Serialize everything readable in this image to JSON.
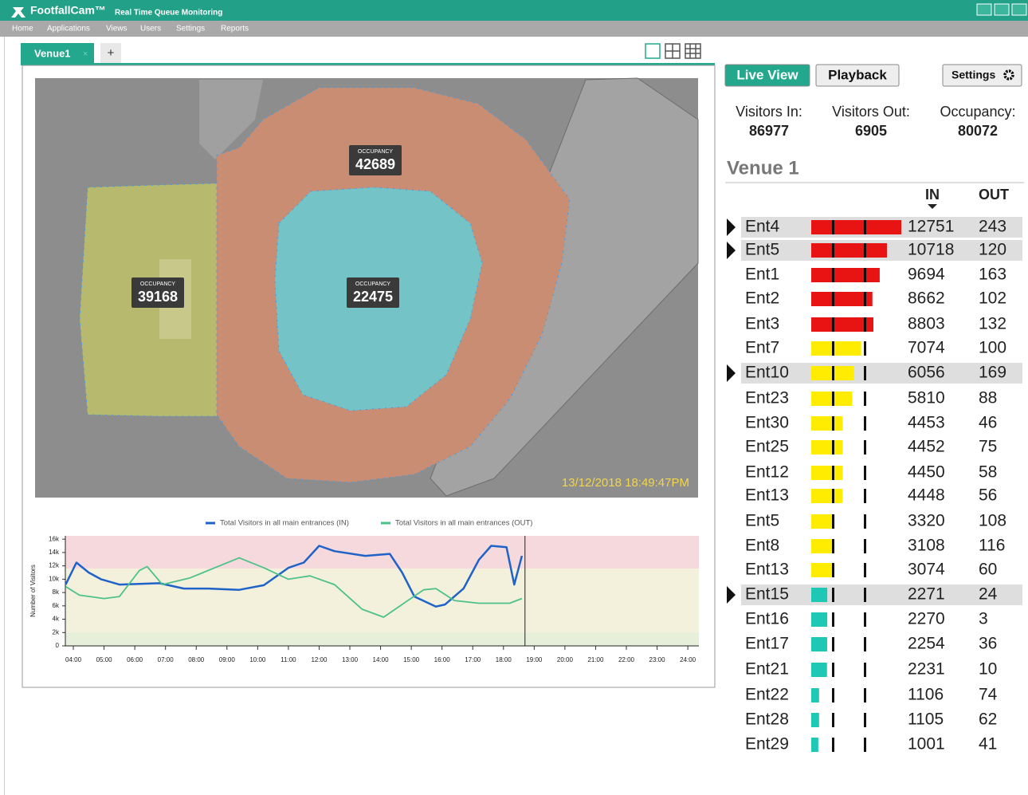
{
  "window": {
    "app_name": "FootfallCam™",
    "subtitle": "Real Time Queue Monitoring"
  },
  "menu": [
    "Home",
    "Applications",
    "Views",
    "Users",
    "Settings",
    "Reports"
  ],
  "tabs": {
    "active": "Venue1",
    "close": "×",
    "add": "+"
  },
  "map": {
    "zones": [
      {
        "label": "OCCUPANCY",
        "value": 42689
      },
      {
        "label": "OCCUPANCY",
        "value": 39168
      },
      {
        "label": "OCCUPANCY",
        "value": 22475
      }
    ],
    "timestamp": "13/12/2018 18:49:47PM"
  },
  "chart_data": {
    "type": "line",
    "y_label": "Number of Visitors",
    "series": [
      {
        "name": "Total Visitors in all main entrances (IN)",
        "color": "#1f63c9",
        "x": [
          3.75,
          4.1,
          4.5,
          4.9,
          5.5,
          6.8,
          7.6,
          8.4,
          9.4,
          10.2,
          11,
          11.5,
          12,
          12.5,
          13.5,
          14.3,
          14.7,
          15.1,
          15.8,
          16.1,
          16.7,
          17.2,
          17.6,
          18.1,
          18.35,
          18.6
        ],
        "values": [
          9200,
          12500,
          11000,
          10000,
          9200,
          9400,
          8600,
          8600,
          8400,
          9100,
          11700,
          12500,
          15000,
          14200,
          13500,
          13800,
          11000,
          7400,
          5900,
          6200,
          8600,
          12900,
          15000,
          14800,
          9200,
          13500
        ]
      },
      {
        "name": "Total Visitors in all main entrances (OUT)",
        "color": "#4cc28a",
        "x": [
          3.75,
          4.2,
          5,
          5.5,
          6.15,
          6.4,
          6.9,
          7.8,
          8.6,
          9.4,
          10.2,
          11,
          11.7,
          12.5,
          13.4,
          14.1,
          14.6,
          15.4,
          15.8,
          16.4,
          17.2,
          18.2,
          18.6
        ],
        "values": [
          8900,
          7600,
          7100,
          7400,
          11300,
          11900,
          9200,
          10200,
          11700,
          13200,
          11700,
          10000,
          10500,
          9200,
          5500,
          4300,
          5900,
          8400,
          8600,
          6800,
          6400,
          6400,
          7100
        ]
      }
    ],
    "xlim": [
      3.74,
      24.36
    ],
    "xticks": [
      {
        "value": 4,
        "label": "04:00"
      },
      {
        "value": 5,
        "label": "05:00"
      },
      {
        "value": 6,
        "label": "06:00"
      },
      {
        "value": 7,
        "label": "07:00"
      },
      {
        "value": 8,
        "label": "08:00"
      },
      {
        "value": 9,
        "label": "09:00"
      },
      {
        "value": 10,
        "label": "10:00"
      },
      {
        "value": 11,
        "label": "11:00"
      },
      {
        "value": 12,
        "label": "12:00"
      },
      {
        "value": 13,
        "label": "13:00"
      },
      {
        "value": 14,
        "label": "14:00"
      },
      {
        "value": 15,
        "label": "15:00"
      },
      {
        "value": 16,
        "label": "16:00"
      },
      {
        "value": 17,
        "label": "17:00"
      },
      {
        "value": 18,
        "label": "18:00"
      },
      {
        "value": 19,
        "label": "19:00"
      },
      {
        "value": 20,
        "label": "20:00"
      },
      {
        "value": 21,
        "label": "21:00"
      },
      {
        "value": 22,
        "label": "22:00"
      },
      {
        "value": 23,
        "label": "23:00"
      },
      {
        "value": 24,
        "label": "24:00"
      }
    ],
    "ylim": [
      0,
      16500
    ],
    "yticks": [
      0,
      {
        "value": 2000,
        "label": "2k"
      },
      {
        "value": 4000,
        "label": "4k"
      },
      {
        "value": 6000,
        "label": "6k"
      },
      {
        "value": 8000,
        "label": "8k"
      },
      {
        "value": 10000,
        "label": "10k"
      },
      {
        "value": 12000,
        "label": "12k"
      },
      {
        "value": 14000,
        "label": "14k"
      },
      {
        "value": 16000,
        "label": "16k"
      }
    ],
    "bands": [
      {
        "from": 0,
        "to": 2000,
        "color": "#e6efd9"
      },
      {
        "from": 2000,
        "to": 11600,
        "color": "#f3f0dc"
      },
      {
        "from": 11600,
        "to": 16500,
        "color": "#f6d9dc"
      }
    ],
    "now_marker": 18.7,
    "legend": "top"
  },
  "panel": {
    "buttons": [
      "Live View",
      "Playback",
      "Settings"
    ],
    "stats": [
      {
        "label": "Visitors In:",
        "value": 86977
      },
      {
        "label": "Visitors Out:",
        "value": 6905
      },
      {
        "label": "Occupancy:",
        "value": 80072
      }
    ],
    "venue": "Venue 1",
    "columns": [
      "IN",
      "OUT"
    ],
    "rows": [
      {
        "name": "Ent4",
        "in": 12751,
        "out": 243,
        "color": "#e81414",
        "selected": true
      },
      {
        "name": "Ent5",
        "in": 10718,
        "out": 120,
        "color": "#e81414",
        "selected": true
      },
      {
        "name": "Ent1",
        "in": 9694,
        "out": 163,
        "color": "#e81414",
        "selected": false
      },
      {
        "name": "Ent2",
        "in": 8662,
        "out": 102,
        "color": "#e81414",
        "selected": false
      },
      {
        "name": "Ent3",
        "in": 8803,
        "out": 132,
        "color": "#e81414",
        "selected": false
      },
      {
        "name": "Ent7",
        "in": 7074,
        "out": 100,
        "color": "#ffec00",
        "selected": false
      },
      {
        "name": "Ent10",
        "in": 6056,
        "out": 169,
        "color": "#ffec00",
        "selected": true
      },
      {
        "name": "Ent23",
        "in": 5810,
        "out": 88,
        "color": "#ffec00",
        "selected": false
      },
      {
        "name": "Ent30",
        "in": 4453,
        "out": 46,
        "color": "#ffec00",
        "selected": false
      },
      {
        "name": "Ent25",
        "in": 4452,
        "out": 75,
        "color": "#ffec00",
        "selected": false
      },
      {
        "name": "Ent12",
        "in": 4450,
        "out": 58,
        "color": "#ffec00",
        "selected": false
      },
      {
        "name": "Ent13",
        "in": 4448,
        "out": 56,
        "color": "#ffec00",
        "selected": false
      },
      {
        "name": "Ent5",
        "in": 3320,
        "out": 108,
        "color": "#ffec00",
        "selected": false
      },
      {
        "name": "Ent8",
        "in": 3108,
        "out": 116,
        "color": "#ffec00",
        "selected": false
      },
      {
        "name": "Ent13",
        "in": 3074,
        "out": 60,
        "color": "#ffec00",
        "selected": false
      },
      {
        "name": "Ent15",
        "in": 2271,
        "out": 24,
        "color": "#1ec8b4",
        "selected": true
      },
      {
        "name": "Ent16",
        "in": 2270,
        "out": 3,
        "color": "#1ec8b4",
        "selected": false
      },
      {
        "name": "Ent17",
        "in": 2254,
        "out": 36,
        "color": "#1ec8b4",
        "selected": false
      },
      {
        "name": "Ent21",
        "in": 2231,
        "out": 10,
        "color": "#1ec8b4",
        "selected": false
      },
      {
        "name": "Ent22",
        "in": 1106,
        "out": 74,
        "color": "#1ec8b4",
        "selected": false
      },
      {
        "name": "Ent28",
        "in": 1105,
        "out": 62,
        "color": "#1ec8b4",
        "selected": false
      },
      {
        "name": "Ent29",
        "in": 1001,
        "out": 41,
        "color": "#1ec8b4",
        "selected": false
      }
    ]
  }
}
